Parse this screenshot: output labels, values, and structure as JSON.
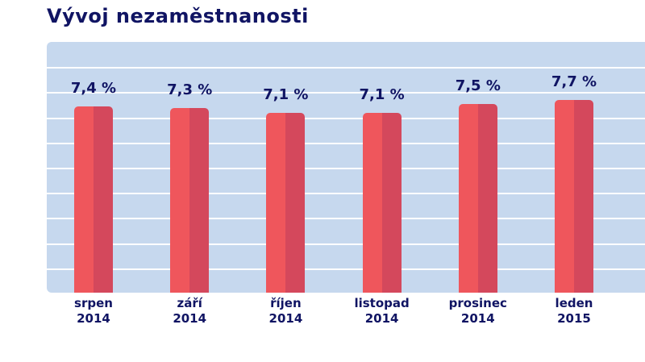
{
  "title": "Vývoj nezaměstnanosti",
  "chart_data": {
    "type": "bar",
    "title": "Vývoj nezaměstnanosti",
    "categories": [
      [
        "srpen",
        "2014"
      ],
      [
        "září",
        "2014"
      ],
      [
        "říjen",
        "2014"
      ],
      [
        "listopad",
        "2014"
      ],
      [
        "prosinec",
        "2014"
      ],
      [
        "leden",
        "2015"
      ]
    ],
    "values": [
      7.4,
      7.3,
      7.1,
      7.1,
      7.5,
      7.7
    ],
    "data_labels": [
      "7,4 %",
      "7,3 %",
      "7,1 %",
      "7,1 %",
      "7,5 %",
      "7,7 %"
    ],
    "grid": true,
    "colors": {
      "bar": "#ef565c",
      "bar_shade": "#d4485c",
      "background": "#c6d8ee",
      "text": "#101463"
    }
  }
}
